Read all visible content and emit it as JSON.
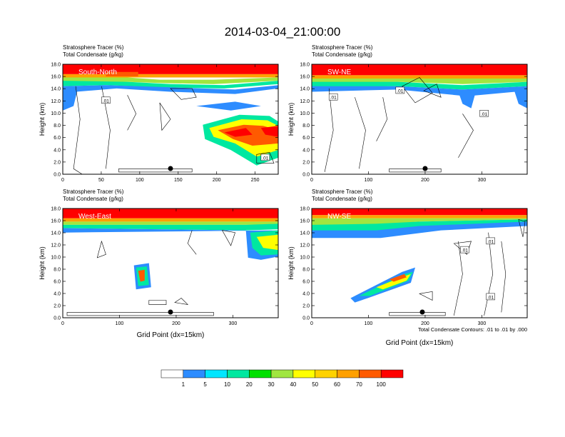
{
  "title": "2014-03-04_21:00:00",
  "footnote": "Total Condensate Contours: .01 to .01 by .000",
  "colors": {
    "levels": [
      "#ffffff",
      "#2d8cff",
      "#00e6ff",
      "#00e8a0",
      "#00e000",
      "#a0e640",
      "#ffff00",
      "#ffd200",
      "#ffa000",
      "#ff5a00",
      "#ff0000"
    ]
  },
  "colorbar": {
    "labels": [
      "1",
      "5",
      "10",
      "20",
      "30",
      "40",
      "50",
      "60",
      "70",
      "100"
    ]
  },
  "chart_data": [
    {
      "type": "heatmap",
      "title_line1": "Stratosphere Tracer   (%)",
      "title_line2": "Total Condensate   (g/kg)",
      "panel_label": "South-North",
      "ylabel": "Height (km)",
      "xlabel": "",
      "xlim": [
        0,
        280
      ],
      "ylim": [
        0,
        18
      ],
      "xticks": [
        0,
        50,
        100,
        150,
        200,
        250
      ],
      "yticks": [
        "0.0",
        "2.0",
        "4.0",
        "6.0",
        "8.0",
        "10.0",
        "12.0",
        "14.0",
        "16.0",
        "18.0"
      ],
      "contour_labels": [
        ".01",
        ".01"
      ],
      "marker_x": 140
    },
    {
      "type": "heatmap",
      "title_line1": "Stratosphere Tracer   (%)",
      "title_line2": "Total Condensate   (g/kg)",
      "panel_label": "SW-NE",
      "ylabel": "Height (km)",
      "xlabel": "",
      "xlim": [
        0,
        380
      ],
      "ylim": [
        0,
        18
      ],
      "xticks": [
        0,
        100,
        200,
        300
      ],
      "yticks": [
        "0.0",
        "2.0",
        "4.0",
        "6.0",
        "8.0",
        "10.0",
        "12.0",
        "14.0",
        "16.0",
        "18.0"
      ],
      "contour_labels": [
        ".01",
        ".01",
        ".01"
      ],
      "marker_x": 200
    },
    {
      "type": "heatmap",
      "title_line1": "Stratosphere Tracer   (%)",
      "title_line2": "Total Condensate   (g/kg)",
      "panel_label": "West-East",
      "ylabel": "Height (km)",
      "xlabel": "Grid Point (dx=15km)",
      "xlim": [
        0,
        380
      ],
      "ylim": [
        0,
        18
      ],
      "xticks": [
        0,
        100,
        200,
        300
      ],
      "yticks": [
        "0.0",
        "2.0",
        "4.0",
        "6.0",
        "8.0",
        "10.0",
        "12.0",
        "14.0",
        "16.0",
        "18.0"
      ],
      "contour_labels": [],
      "marker_x": 190
    },
    {
      "type": "heatmap",
      "title_line1": "Stratosphere Tracer   (%)",
      "title_line2": "Total Condensate   (g/kg)",
      "panel_label": "NW-SE",
      "ylabel": "Height (km)",
      "xlabel": "Grid Point (dx=15km)",
      "xlim": [
        0,
        380
      ],
      "ylim": [
        0,
        18
      ],
      "xticks": [
        0,
        100,
        200,
        300
      ],
      "yticks": [
        "0.0",
        "2.0",
        "4.0",
        "6.0",
        "8.0",
        "10.0",
        "12.0",
        "14.0",
        "16.0",
        "18.0"
      ],
      "contour_labels": [
        ".01",
        ".01",
        ".01"
      ],
      "marker_x": 195
    }
  ]
}
